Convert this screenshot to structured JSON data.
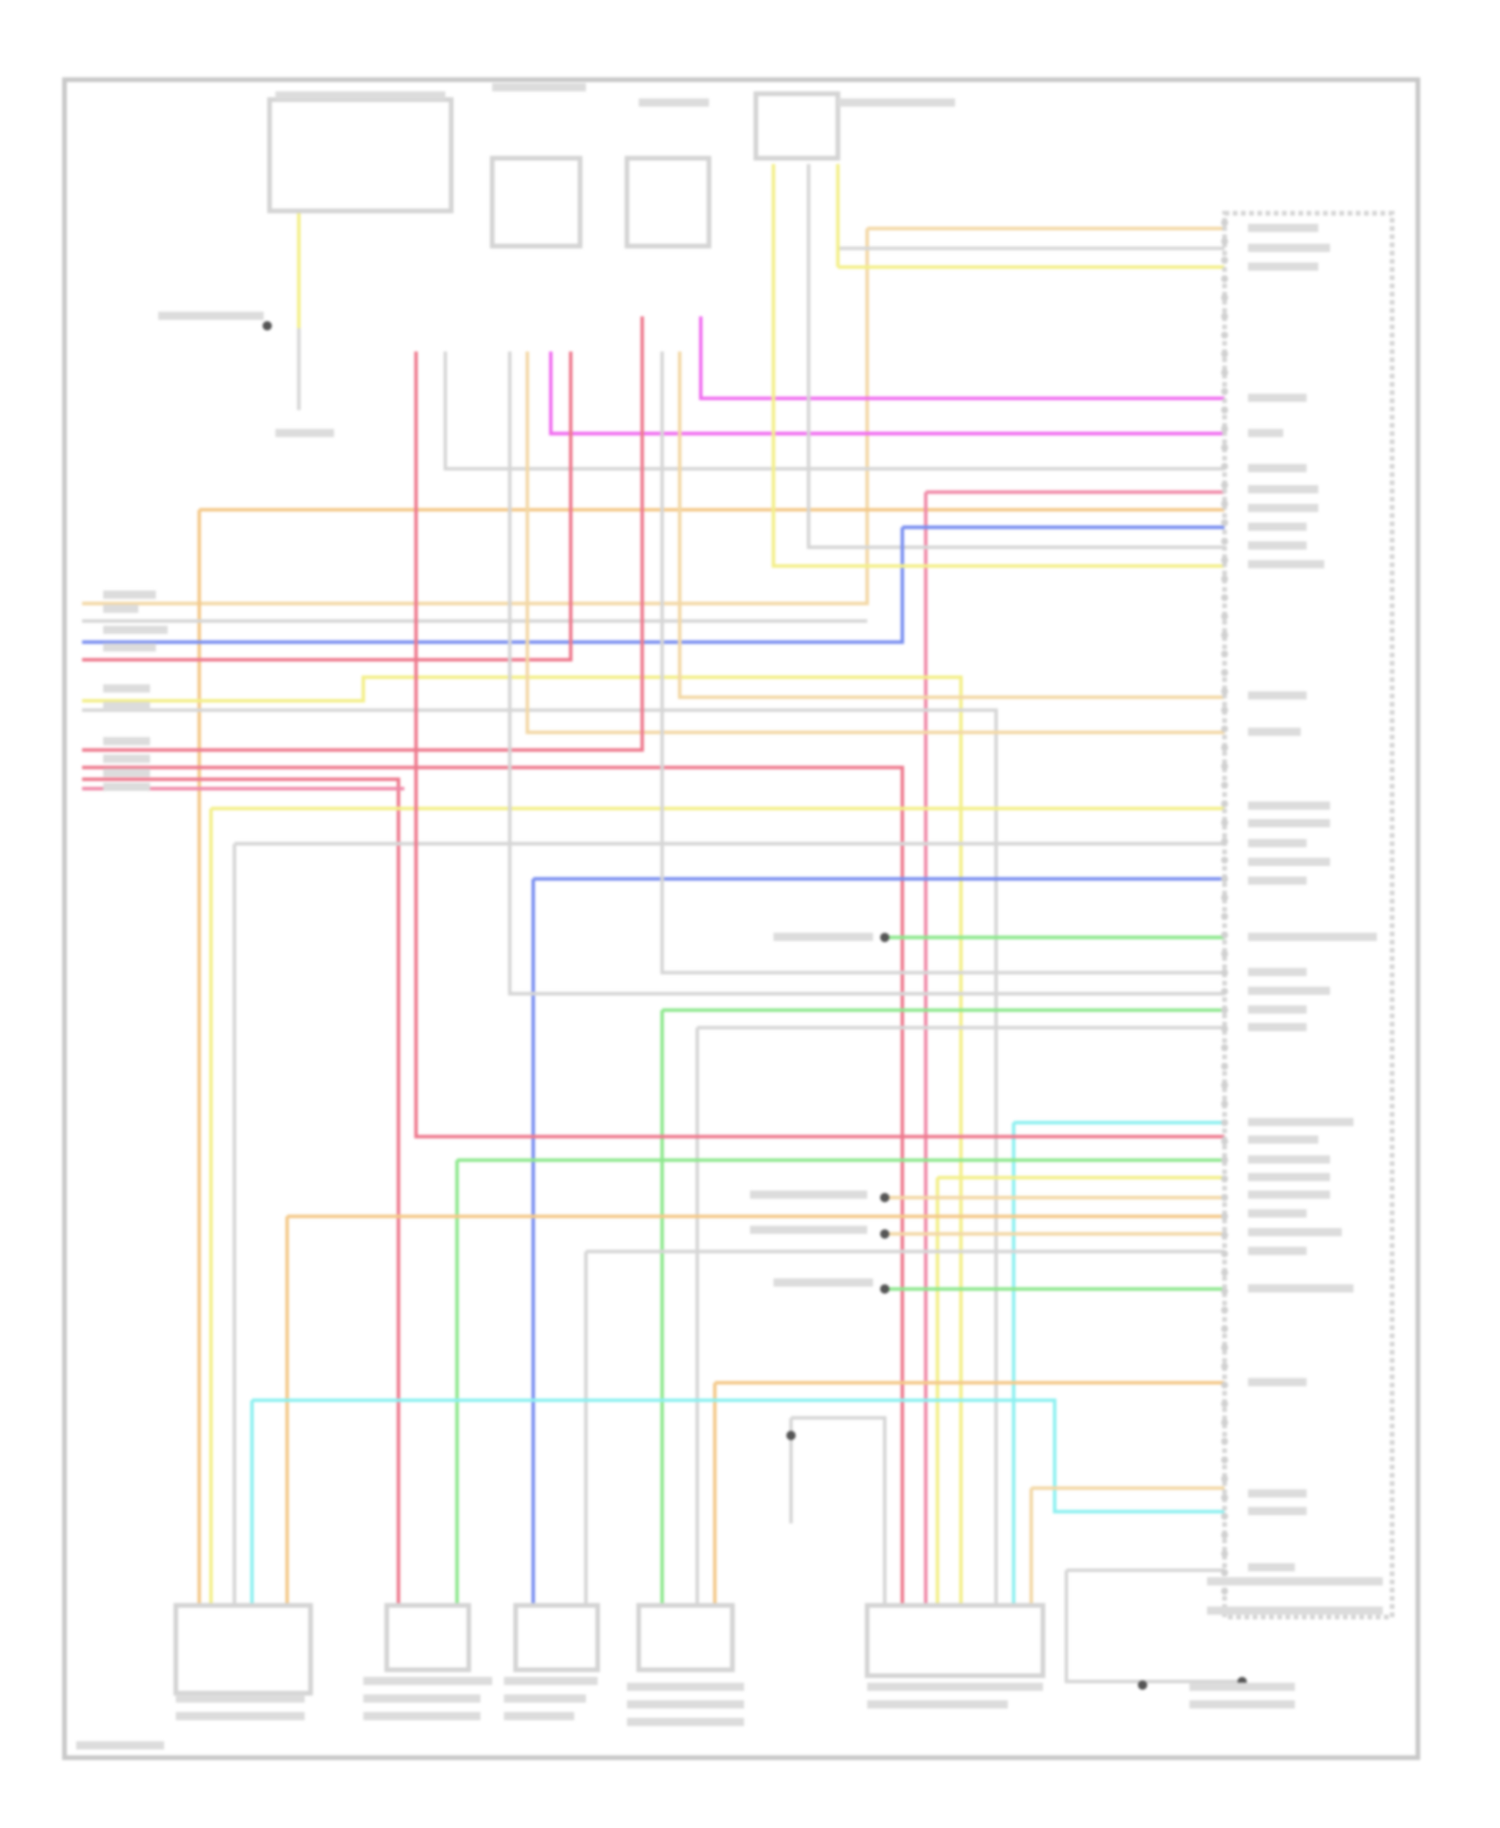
{
  "diagram": {
    "type": "wiring-diagram",
    "frame_color": "#c8c8c8",
    "component_color": "#d4d4d4",
    "label_blob_color": "#dcdcdc",
    "wire_colors": {
      "tan": "#f3d8a6",
      "grey": "#d6d6d6",
      "yellow": "#f3ef8a",
      "magenta": "#f06ef0",
      "orange": "#f4c98a",
      "pink": "#f08aa8",
      "blue": "#7a8ff0",
      "red": "#ee7a8e",
      "green": "#8ee88e",
      "cyan": "#8ef0f0"
    }
  }
}
